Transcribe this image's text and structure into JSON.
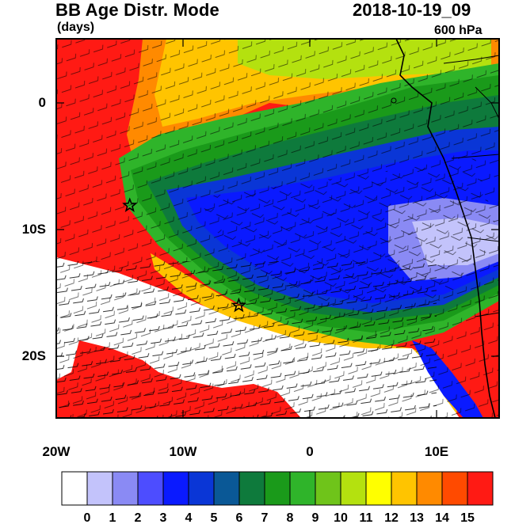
{
  "header": {
    "title": "BB Age Distr. Mode",
    "units": "(days)",
    "valid_time": "2018-10-19_09",
    "level": "600 hPa"
  },
  "axes": {
    "lat_labels": [
      "0",
      "10S",
      "20S"
    ],
    "lon_labels": [
      "20W",
      "10W",
      "0",
      "10E"
    ]
  },
  "colorbar": {
    "labels": [
      "0",
      "1",
      "2",
      "3",
      "4",
      "5",
      "6",
      "7",
      "8",
      "9",
      "10",
      "11",
      "12",
      "13",
      "14",
      "15"
    ],
    "colors": [
      "#ffffff",
      "#c3c3fb",
      "#8a8af4",
      "#4d4dff",
      "#0a1aff",
      "#0a36d6",
      "#0a5896",
      "#0e7a3c",
      "#1a9a1a",
      "#2fb42a",
      "#6fc41a",
      "#b4e10f",
      "#ffff00",
      "#ffc400",
      "#ff8a00",
      "#ff4a00",
      "#ff1a14"
    ]
  },
  "markers": [
    {
      "name": "star-marker-west",
      "lon": -14.2,
      "lat": -8.1
    },
    {
      "name": "star-marker-south",
      "lon": -5.6,
      "lat": -16.0
    }
  ]
}
